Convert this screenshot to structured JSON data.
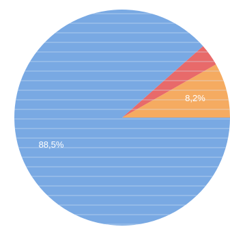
{
  "chart_data": {
    "type": "pie",
    "start_angle_deg": 0,
    "direction": "counterclockwise",
    "slices": [
      {
        "value": 8.2,
        "label": "8,2%",
        "color": "#F5AB61"
      },
      {
        "value": 3.3,
        "label": "",
        "color": "#E86A6A"
      },
      {
        "value": 88.5,
        "label": "88,5%",
        "color": "#79A9E3"
      }
    ],
    "stripe_color": "#D9E6F6"
  }
}
